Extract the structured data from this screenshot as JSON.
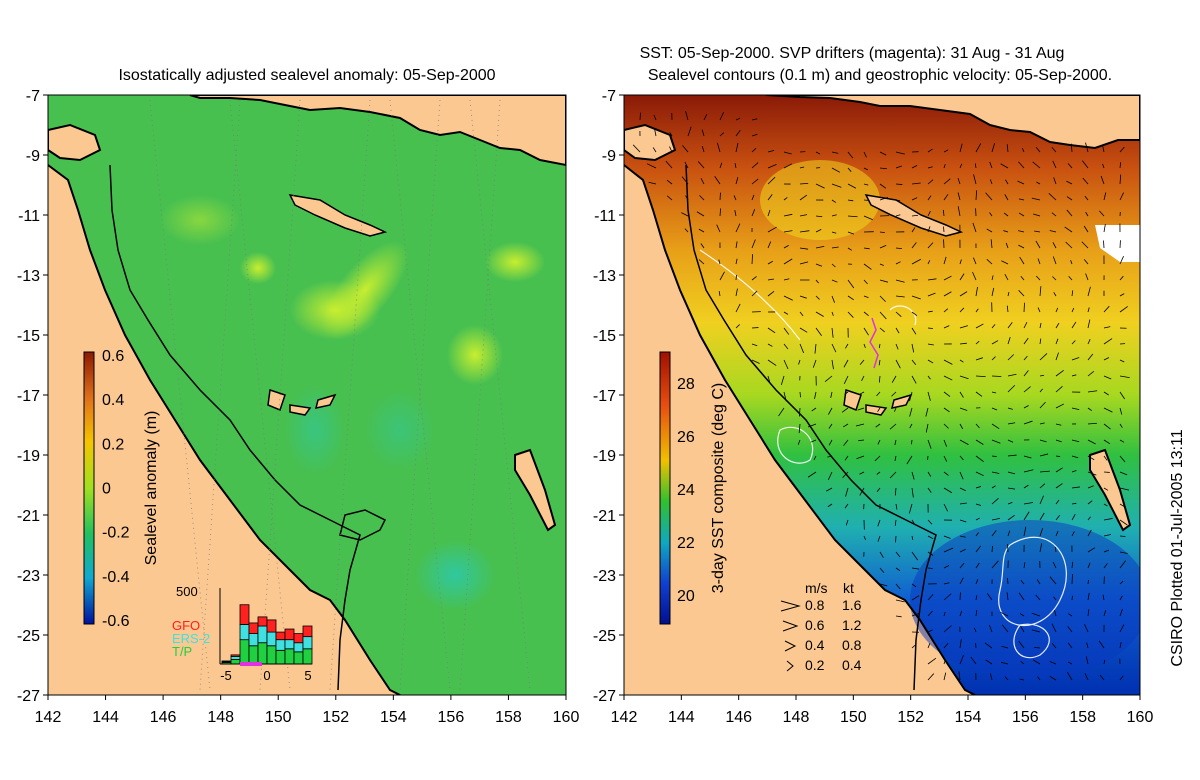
{
  "left_panel": {
    "title": "Isostatically adjusted sealevel anomaly: 05-Sep-2000",
    "colorbar": {
      "label": "Sealevel anomaly (m)",
      "ticks": [
        "0.6",
        "0.4",
        "0.2",
        "0",
        "-0.2",
        "-0.4",
        "-0.6"
      ],
      "colors": [
        "#8b1a00",
        "#e0701a",
        "#f5c400",
        "#a0e020",
        "#20c060",
        "#10a8d0",
        "#0010a0"
      ]
    },
    "histogram": {
      "ymax_label": "500",
      "legend": [
        {
          "name": "GFO",
          "color": "#ff2020"
        },
        {
          "name": "ERS-2",
          "color": "#40e0e0"
        },
        {
          "name": "T/P",
          "color": "#20d040"
        }
      ],
      "x_ticks": [
        "-5",
        "0",
        "5"
      ],
      "bars": [
        {
          "x": -5,
          "tp": 10,
          "ers": 5,
          "gfo": 5
        },
        {
          "x": -4,
          "tp": 30,
          "ers": 20,
          "gfo": 10
        },
        {
          "x": -3,
          "tp": 160,
          "ers": 100,
          "gfo": 130
        },
        {
          "x": -2,
          "tp": 120,
          "ers": 80,
          "gfo": 70
        },
        {
          "x": -1,
          "tp": 140,
          "ers": 110,
          "gfo": 60
        },
        {
          "x": 0,
          "tp": 120,
          "ers": 90,
          "gfo": 80
        },
        {
          "x": 1,
          "tp": 90,
          "ers": 70,
          "gfo": 50
        },
        {
          "x": 2,
          "tp": 100,
          "ers": 60,
          "gfo": 70
        },
        {
          "x": 3,
          "tp": 80,
          "ers": 60,
          "gfo": 60
        },
        {
          "x": 4,
          "tp": 100,
          "ers": 80,
          "gfo": 70
        }
      ]
    }
  },
  "right_panel": {
    "title_line1": "SST: 05-Sep-2000. SVP drifters (magenta): 31 Aug - 31 Aug",
    "title_line2": "Sealevel contours (0.1 m) and geostrophic velocity: 05-Sep-2000.",
    "colorbar": {
      "label": "3-day SST composite (deg C)",
      "ticks": [
        "28",
        "26",
        "24",
        "22",
        "20"
      ],
      "colors": [
        "#a01000",
        "#e85010",
        "#f0c000",
        "#30c030",
        "#10a8c0",
        "#1040d0",
        "#001090"
      ]
    },
    "velocity_legend": {
      "header_ms": "m/s",
      "header_kt": "kt",
      "rows": [
        {
          "ms": "0.8",
          "kt": "1.6"
        },
        {
          "ms": "0.6",
          "kt": "1.2"
        },
        {
          "ms": "0.4",
          "kt": "0.8"
        },
        {
          "ms": "0.2",
          "kt": "0.4"
        }
      ]
    }
  },
  "axes": {
    "lon_ticks": [
      "142",
      "144",
      "146",
      "148",
      "150",
      "152",
      "154",
      "156",
      "158",
      "160"
    ],
    "lat_ticks": [
      "-7",
      "-9",
      "-11",
      "-13",
      "-15",
      "-17",
      "-19",
      "-21",
      "-23",
      "-25",
      "-27"
    ]
  },
  "colors": {
    "land": "#fcc891",
    "ocean_base": "#4cc24e",
    "coast": "#000000"
  },
  "credit": "CSIRO Plotted 01-Jul-2005 13:11"
}
